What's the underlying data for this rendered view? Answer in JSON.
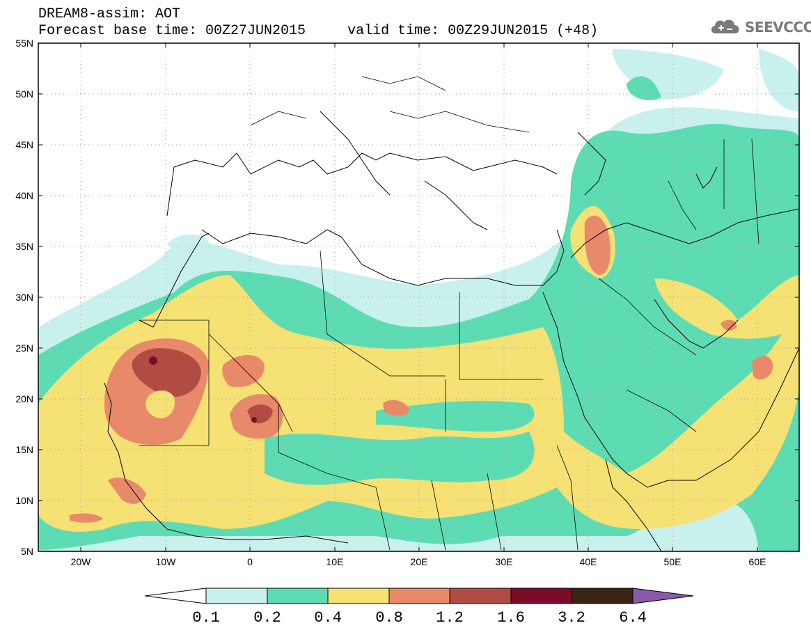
{
  "title": {
    "line1": "DREAM8-assim: AOT",
    "line2": "Forecast base time: 00Z27JUN2015     valid time: 00Z29JUN2015 (+48)"
  },
  "logo": {
    "text": "SEEVCCC",
    "icon": "cloud-icon"
  },
  "map": {
    "projection": "cylindrical-equidistant",
    "lon_range": [
      -25,
      65
    ],
    "lat_range": [
      5,
      55
    ],
    "lat_labels": [
      "55N",
      "50N",
      "45N",
      "40N",
      "35N",
      "30N",
      "25N",
      "20N",
      "15N",
      "10N",
      "5N"
    ],
    "lon_labels": [
      "20W",
      "10W",
      "0",
      "10E",
      "20E",
      "30E",
      "40E",
      "50E",
      "60E"
    ],
    "grid": "dotted"
  },
  "colorbar": {
    "labels": [
      "0.1",
      "0.2",
      "0.4",
      "0.8",
      "1.2",
      "1.6",
      "3.2",
      "6.4"
    ],
    "colors": [
      "#c8f0ec",
      "#5ddcb4",
      "#f5e174",
      "#e8896a",
      "#b04c42",
      "#7a0c2a",
      "#3a2414",
      "#8a5aa8"
    ]
  }
}
